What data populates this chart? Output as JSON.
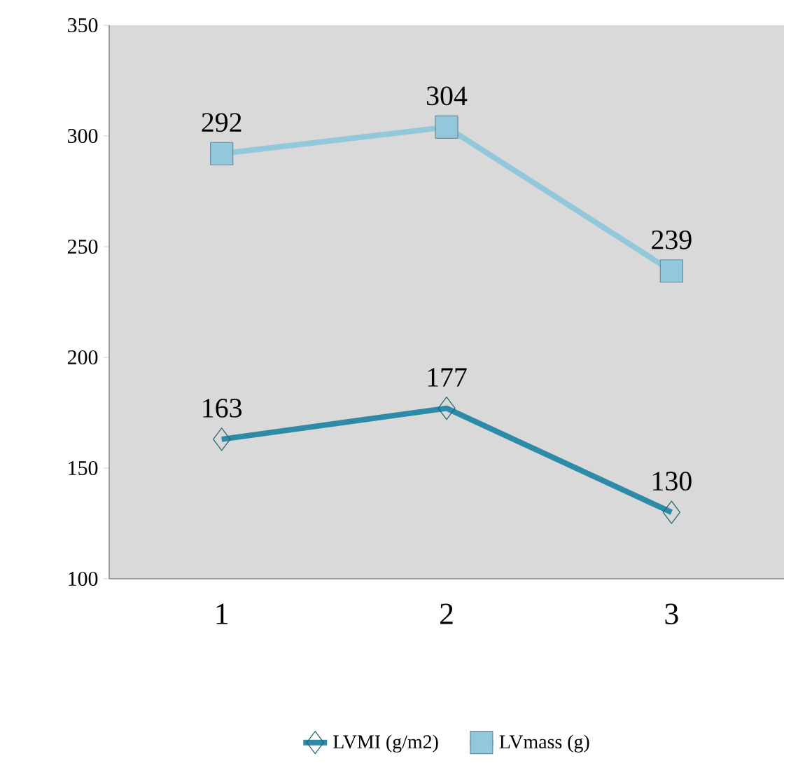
{
  "chart_data": {
    "type": "line",
    "categories": [
      "1",
      "2",
      "3"
    ],
    "series": [
      {
        "name": "LVMI (g/m2)",
        "color": "#2e8ba8",
        "values": [
          163,
          177,
          130
        ],
        "marker": "diamond"
      },
      {
        "name": "LVmass (g)",
        "color": "#93c8dc",
        "values": [
          292,
          304,
          239
        ],
        "marker": "square"
      }
    ],
    "ylim": [
      100,
      350
    ],
    "yticks": [
      100,
      150,
      200,
      250,
      300,
      350
    ],
    "data_labels": true,
    "grid": false,
    "legend": "bottom",
    "line_style": "solid"
  }
}
